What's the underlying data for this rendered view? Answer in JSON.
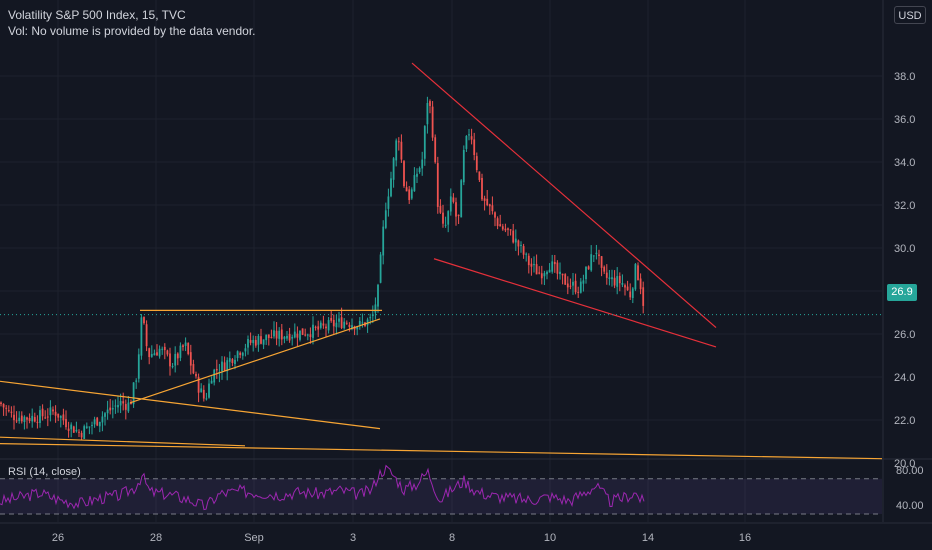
{
  "header": {
    "title": "Volatility S&P 500 Index, 15, TVC",
    "volume_note": "Vol: No volume is provided by the data vendor.",
    "currency_button": "USD",
    "last_price": "26.9"
  },
  "rsi_panel": {
    "label": "RSI (14, close)",
    "ticks": [
      "80.00",
      "40.00"
    ]
  },
  "colors": {
    "background": "#131722",
    "up": "#26a69a",
    "down": "#ef5350",
    "orange_lines": "#f7a534",
    "red_lines": "#e5303a",
    "rsi_line": "#9c27b0"
  },
  "chart_data": [
    {
      "type": "candlestick",
      "instrument": "Volatility S&P 500 Index",
      "interval": "15",
      "source": "TVC",
      "y_ticks": [
        20.0,
        22.0,
        24.0,
        26.0,
        28.0,
        30.0,
        32.0,
        34.0,
        36.0,
        38.0
      ],
      "y_tick_labels": [
        "20.0",
        "22.0",
        "24.0",
        "26.0",
        "28.0",
        "30.0",
        "32.0",
        "34.0",
        "36.0",
        "38.0"
      ],
      "ylim": [
        19.2,
        39.5
      ],
      "x_tick_labels": [
        "26",
        "28",
        "Sep",
        "3",
        "8",
        "10",
        "14",
        "16"
      ],
      "last_value": 26.9,
      "grid": true,
      "close_path": [
        [
          0,
          22.8
        ],
        [
          12,
          22.2
        ],
        [
          28,
          22.1
        ],
        [
          42,
          22.2
        ],
        [
          55,
          22.4
        ],
        [
          68,
          21.8
        ],
        [
          80,
          21.4
        ],
        [
          92,
          21.8
        ],
        [
          105,
          22.3
        ],
        [
          120,
          22.8
        ],
        [
          130,
          22.7
        ],
        [
          137,
          24.2
        ],
        [
          142,
          26.9
        ],
        [
          148,
          25.0
        ],
        [
          160,
          25.3
        ],
        [
          172,
          24.6
        ],
        [
          185,
          25.5
        ],
        [
          196,
          23.8
        ],
        [
          205,
          22.9
        ],
        [
          212,
          24.2
        ],
        [
          225,
          24.6
        ],
        [
          238,
          25.2
        ],
        [
          250,
          25.6
        ],
        [
          262,
          25.8
        ],
        [
          275,
          25.9
        ],
        [
          290,
          26.0
        ],
        [
          305,
          26.1
        ],
        [
          318,
          26.2
        ],
        [
          330,
          26.4
        ],
        [
          345,
          26.6
        ],
        [
          360,
          26.4
        ],
        [
          372,
          26.7
        ],
        [
          378,
          28.0
        ],
        [
          385,
          31.8
        ],
        [
          392,
          33.5
        ],
        [
          398,
          35.5
        ],
        [
          404,
          33.0
        ],
        [
          410,
          32.3
        ],
        [
          416,
          33.4
        ],
        [
          422,
          34.0
        ],
        [
          428,
          37.2
        ],
        [
          432,
          35.8
        ],
        [
          438,
          32.0
        ],
        [
          444,
          30.7
        ],
        [
          452,
          32.4
        ],
        [
          458,
          31.0
        ],
        [
          464,
          34.5
        ],
        [
          470,
          35.6
        ],
        [
          476,
          34.0
        ],
        [
          482,
          32.4
        ],
        [
          490,
          31.8
        ],
        [
          500,
          31.0
        ],
        [
          510,
          30.7
        ],
        [
          520,
          30.0
        ],
        [
          530,
          29.2
        ],
        [
          540,
          28.8
        ],
        [
          550,
          29.3
        ],
        [
          560,
          28.6
        ],
        [
          570,
          28.3
        ],
        [
          580,
          28.1
        ],
        [
          590,
          29.4
        ],
        [
          596,
          30.0
        ],
        [
          602,
          28.7
        ],
        [
          612,
          28.5
        ],
        [
          622,
          28.4
        ],
        [
          630,
          27.8
        ],
        [
          636,
          29.1
        ],
        [
          641,
          28.2
        ],
        [
          645,
          26.9
        ]
      ],
      "annotations": {
        "orange_lines": [
          {
            "from": [
              0,
              23.8
            ],
            "to": [
              380,
              21.6
            ]
          },
          {
            "from": [
              0,
              21.2
            ],
            "to": [
              245,
              20.8
            ]
          },
          {
            "from": [
              130,
              22.8
            ],
            "to": [
              380,
              26.7
            ]
          },
          {
            "from": [
              140,
              27.1
            ],
            "to": [
              382,
              27.1
            ]
          },
          {
            "from": [
              0,
              20.9
            ],
            "to": [
              882,
              20.2
            ]
          }
        ],
        "red_lines": [
          {
            "from": [
              412,
              38.6
            ],
            "to": [
              716,
              26.3
            ]
          },
          {
            "from": [
              434,
              29.5
            ],
            "to": [
              716,
              25.4
            ]
          }
        ],
        "last_price_line": 26.9
      }
    },
    {
      "type": "line",
      "name": "RSI (14, close)",
      "y_ticks": [
        80.0,
        40.0
      ],
      "ylim": [
        25,
        95
      ],
      "bands": [
        70,
        30
      ],
      "values": [
        [
          0,
          44
        ],
        [
          20,
          49
        ],
        [
          40,
          54
        ],
        [
          60,
          46
        ],
        [
          80,
          42
        ],
        [
          100,
          48
        ],
        [
          120,
          51
        ],
        [
          135,
          60
        ],
        [
          142,
          74
        ],
        [
          150,
          55
        ],
        [
          170,
          52
        ],
        [
          190,
          46
        ],
        [
          205,
          38
        ],
        [
          220,
          53
        ],
        [
          240,
          56
        ],
        [
          260,
          54
        ],
        [
          280,
          52
        ],
        [
          300,
          55
        ],
        [
          320,
          53
        ],
        [
          340,
          57
        ],
        [
          360,
          52
        ],
        [
          372,
          58
        ],
        [
          378,
          74
        ],
        [
          385,
          82
        ],
        [
          392,
          76
        ],
        [
          404,
          58
        ],
        [
          416,
          64
        ],
        [
          428,
          78
        ],
        [
          440,
          46
        ],
        [
          452,
          58
        ],
        [
          464,
          68
        ],
        [
          476,
          56
        ],
        [
          490,
          51
        ],
        [
          510,
          48
        ],
        [
          530,
          46
        ],
        [
          550,
          50
        ],
        [
          570,
          45
        ],
        [
          590,
          58
        ],
        [
          596,
          62
        ],
        [
          610,
          44
        ],
        [
          622,
          48
        ],
        [
          636,
          54
        ],
        [
          645,
          40
        ]
      ]
    }
  ]
}
